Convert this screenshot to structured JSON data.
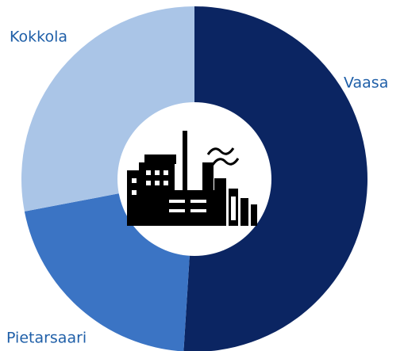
{
  "chart_data": {
    "type": "donut",
    "categories": [
      "Vaasa",
      "Pietarsaari",
      "Kokkola"
    ],
    "values": [
      51,
      21,
      28
    ],
    "colors": [
      "#0b2562",
      "#3b74c4",
      "#aac5e7"
    ]
  }
}
